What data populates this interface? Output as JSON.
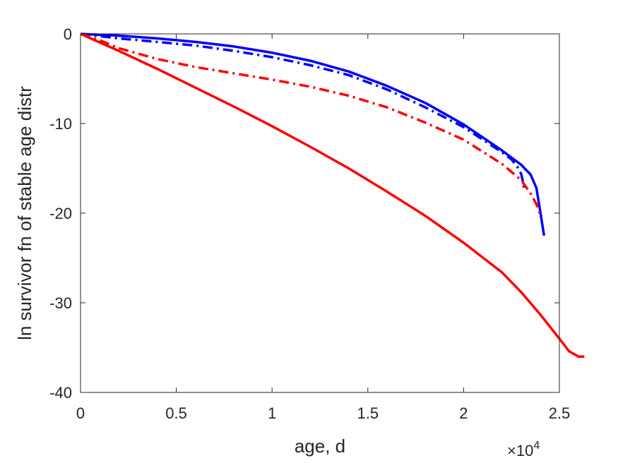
{
  "chart_data": {
    "type": "line",
    "xlabel": "age, d",
    "ylabel": "ln survivor fn of stable age distr",
    "x_multiplier_label": {
      "base": "×10",
      "exponent": "4"
    },
    "xlim": [
      0,
      25000
    ],
    "ylim": [
      -40,
      0
    ],
    "xticks": [
      0,
      5000,
      10000,
      15000,
      20000,
      25000
    ],
    "xtick_labels": [
      "0",
      "0.5",
      "1",
      "1.5",
      "2",
      "2.5"
    ],
    "yticks": [
      0,
      -10,
      -20,
      -30,
      -40
    ],
    "ytick_labels": [
      "0",
      "-10",
      "-20",
      "-30",
      "-40"
    ],
    "grid": false,
    "legend": "none",
    "series": [
      {
        "color": "#0000ff",
        "style": "solid",
        "points": [
          [
            0,
            0
          ],
          [
            2000,
            -0.2
          ],
          [
            4000,
            -0.5
          ],
          [
            6000,
            -0.9
          ],
          [
            8000,
            -1.4
          ],
          [
            10000,
            -2.1
          ],
          [
            12000,
            -3.0
          ],
          [
            14000,
            -4.2
          ],
          [
            16000,
            -5.8
          ],
          [
            18000,
            -7.7
          ],
          [
            20000,
            -10.1
          ],
          [
            22000,
            -13.0
          ],
          [
            23000,
            -14.6
          ],
          [
            23500,
            -15.7
          ],
          [
            23800,
            -17.2
          ],
          [
            24000,
            -19.8
          ],
          [
            24200,
            -22.5
          ]
        ]
      },
      {
        "color": "#0000ff",
        "style": "dashdot",
        "points": [
          [
            0,
            0
          ],
          [
            2000,
            -0.5
          ],
          [
            4000,
            -0.9
          ],
          [
            6000,
            -1.3
          ],
          [
            8000,
            -1.9
          ],
          [
            10000,
            -2.6
          ],
          [
            12000,
            -3.5
          ],
          [
            14000,
            -4.6
          ],
          [
            16000,
            -6.2
          ],
          [
            18000,
            -8.2
          ],
          [
            20000,
            -10.4
          ],
          [
            22000,
            -13.2
          ],
          [
            22500,
            -14.0
          ],
          [
            22800,
            -14.8
          ],
          [
            23000,
            -15.6
          ],
          [
            23100,
            -16.5
          ],
          [
            23150,
            -17.2
          ]
        ]
      },
      {
        "color": "#ff0000",
        "style": "dashdot",
        "points": [
          [
            0,
            0
          ],
          [
            1000,
            -0.7
          ],
          [
            2000,
            -1.6
          ],
          [
            4000,
            -2.8
          ],
          [
            6000,
            -3.7
          ],
          [
            8000,
            -4.4
          ],
          [
            10000,
            -5.1
          ],
          [
            12000,
            -5.9
          ],
          [
            14000,
            -6.9
          ],
          [
            16000,
            -8.2
          ],
          [
            18000,
            -9.9
          ],
          [
            20000,
            -11.8
          ],
          [
            22000,
            -14.5
          ],
          [
            23000,
            -16.3
          ],
          [
            23500,
            -17.8
          ],
          [
            23800,
            -19.0
          ],
          [
            24000,
            -20.2
          ]
        ]
      },
      {
        "color": "#ff0000",
        "style": "solid",
        "points": [
          [
            0,
            0
          ],
          [
            2000,
            -1.9
          ],
          [
            4000,
            -3.9
          ],
          [
            6000,
            -6.0
          ],
          [
            8000,
            -8.1
          ],
          [
            10000,
            -10.3
          ],
          [
            12000,
            -12.6
          ],
          [
            14000,
            -15.0
          ],
          [
            16000,
            -17.6
          ],
          [
            18000,
            -20.3
          ],
          [
            20000,
            -23.3
          ],
          [
            22000,
            -26.6
          ],
          [
            23000,
            -28.8
          ],
          [
            24000,
            -31.3
          ],
          [
            25000,
            -34.0
          ],
          [
            25500,
            -35.4
          ],
          [
            26000,
            -36.0
          ],
          [
            26300,
            -36.0
          ]
        ]
      }
    ]
  }
}
